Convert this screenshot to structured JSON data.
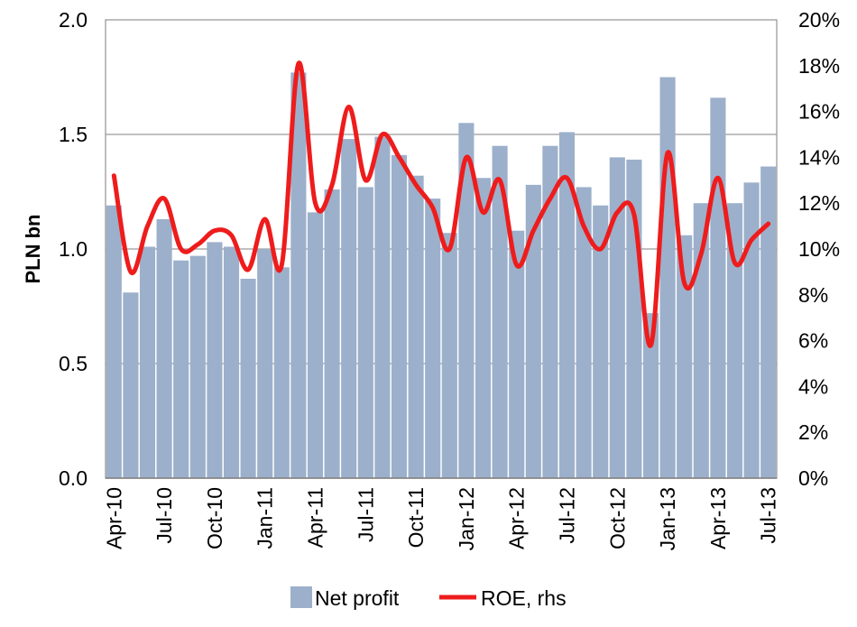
{
  "chart_data": {
    "type": "bar",
    "categories": [
      "Apr-10",
      "May-10",
      "Jun-10",
      "Jul-10",
      "Aug-10",
      "Sep-10",
      "Oct-10",
      "Nov-10",
      "Dec-10",
      "Jan-11",
      "Feb-11",
      "Mar-11",
      "Apr-11",
      "May-11",
      "Jun-11",
      "Jul-11",
      "Aug-11",
      "Sep-11",
      "Oct-11",
      "Nov-11",
      "Dec-11",
      "Jan-12",
      "Feb-12",
      "Mar-12",
      "Apr-12",
      "May-12",
      "Jun-12",
      "Jul-12",
      "Aug-12",
      "Sep-12",
      "Oct-12",
      "Nov-12",
      "Dec-12",
      "Jan-13",
      "Feb-13",
      "Mar-13",
      "Apr-13",
      "May-13",
      "Jun-13",
      "Jul-13"
    ],
    "x_tick_labels": [
      "Apr-10",
      "Jul-10",
      "Oct-10",
      "Jan-11",
      "Apr-11",
      "Jul-11",
      "Oct-11",
      "Jan-12",
      "Apr-12",
      "Jul-12",
      "Oct-12",
      "Jan-13",
      "Apr-13",
      "Jul-13"
    ],
    "series": [
      {
        "name": "Net profit",
        "type": "bar",
        "axis": "left",
        "color": "#9cb0cb",
        "values": [
          1.19,
          0.81,
          1.01,
          1.13,
          0.95,
          0.97,
          1.03,
          1.01,
          0.87,
          1.0,
          0.92,
          1.77,
          1.16,
          1.26,
          1.48,
          1.27,
          1.49,
          1.41,
          1.32,
          1.22,
          1.07,
          1.55,
          1.31,
          1.45,
          1.08,
          1.28,
          1.45,
          1.51,
          1.27,
          1.19,
          1.4,
          1.39,
          0.72,
          1.75,
          1.06,
          1.2,
          1.66,
          1.2,
          1.29,
          1.36
        ]
      },
      {
        "name": "ROE, rhs",
        "type": "line",
        "axis": "right",
        "color": "#ee1c1c",
        "values": [
          13.2,
          9.0,
          11.0,
          12.2,
          10.0,
          10.2,
          10.8,
          10.6,
          9.1,
          11.3,
          9.3,
          18.1,
          12.0,
          12.8,
          16.2,
          13.0,
          15.0,
          14.0,
          12.8,
          11.8,
          10.0,
          14.0,
          11.6,
          13.0,
          9.3,
          10.8,
          12.2,
          13.1,
          11.0,
          10.0,
          11.6,
          11.5,
          5.8,
          14.2,
          8.5,
          9.8,
          13.1,
          9.4,
          10.4,
          11.1
        ]
      }
    ],
    "ylabel": "PLN bn",
    "ylim": [
      0,
      2.0
    ],
    "y_ticks": [
      "0.0",
      "0.5",
      "1.0",
      "1.5",
      "2.0"
    ],
    "y2lim": [
      0,
      20
    ],
    "y2_ticks": [
      "0%",
      "2%",
      "4%",
      "6%",
      "8%",
      "10%",
      "12%",
      "14%",
      "16%",
      "18%",
      "20%"
    ],
    "grid": "horizontal",
    "legend_position": "bottom",
    "colors": {
      "gridline": "#9a9a9a",
      "plot_border": "#9a9a9a"
    }
  }
}
